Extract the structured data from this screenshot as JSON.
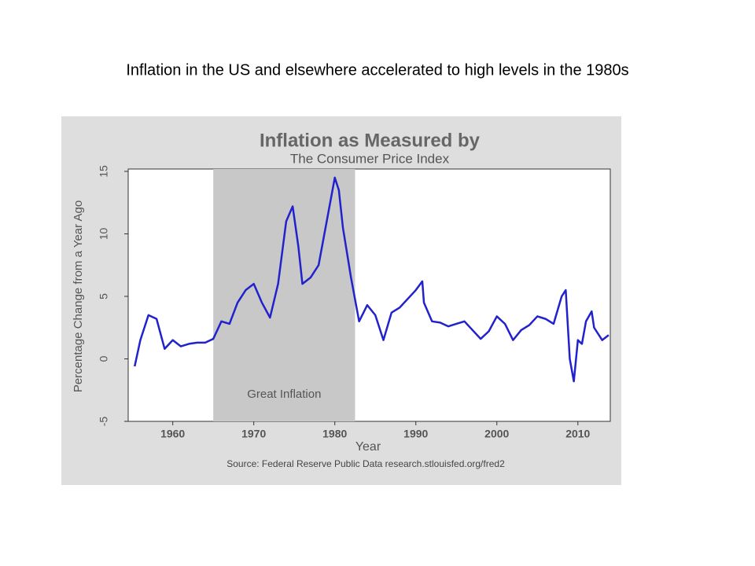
{
  "slide_title": "Inflation in the US and elsewhere accelerated to high levels in the 1980s",
  "chart_data": {
    "type": "line",
    "title": "Inflation as Measured by",
    "subtitle": "The Consumer Price Index",
    "y_label": "Percentage Change from a Year Ago",
    "x_label": "Year",
    "source": "Source: Federal Reserve Public Data research.stlouisfed.org/fred2",
    "annotation": "Great Inflation",
    "shade": [
      1965,
      1982.5
    ],
    "color": "#2222cc",
    "x": [
      1955.3,
      1956,
      1957,
      1958,
      1959,
      1960,
      1961,
      1962,
      1963,
      1964,
      1965,
      1966,
      1967,
      1968,
      1969,
      1970,
      1971,
      1972,
      1973,
      1974,
      1974.8,
      1975.5,
      1976,
      1977,
      1978,
      1979,
      1980,
      1980.5,
      1981,
      1982,
      1983,
      1984,
      1985,
      1986,
      1987,
      1988,
      1989,
      1990,
      1990.8,
      1991,
      1992,
      1993,
      1994,
      1995,
      1996,
      1997,
      1998,
      1999,
      2000,
      2001,
      2002,
      2003,
      2004,
      2005,
      2006,
      2007,
      2008,
      2008.5,
      2009,
      2009.5,
      2010,
      2010.5,
      2011,
      2011.7,
      2012,
      2013,
      2013.8
    ],
    "values": [
      -0.6,
      1.5,
      3.5,
      3.2,
      0.8,
      1.5,
      1.0,
      1.2,
      1.3,
      1.3,
      1.6,
      3.0,
      2.8,
      4.5,
      5.5,
      6.0,
      4.5,
      3.3,
      6.0,
      11.0,
      12.2,
      9.0,
      6.0,
      6.5,
      7.5,
      11.0,
      14.5,
      13.5,
      10.5,
      6.5,
      3.0,
      4.3,
      3.5,
      1.5,
      3.7,
      4.1,
      4.8,
      5.5,
      6.2,
      4.5,
      3.0,
      2.9,
      2.6,
      2.8,
      3.0,
      2.3,
      1.6,
      2.2,
      3.4,
      2.8,
      1.5,
      2.3,
      2.7,
      3.4,
      3.2,
      2.8,
      5.0,
      5.5,
      0.0,
      -1.8,
      1.5,
      1.2,
      3.0,
      3.8,
      2.5,
      1.5,
      1.9
    ],
    "xlim": [
      1954.5,
      2014
    ],
    "xticks": [
      1960,
      1970,
      1980,
      1990,
      2000,
      2010
    ],
    "ylim": [
      -5,
      15
    ],
    "yticks": [
      -5,
      0,
      5,
      10,
      15
    ]
  }
}
